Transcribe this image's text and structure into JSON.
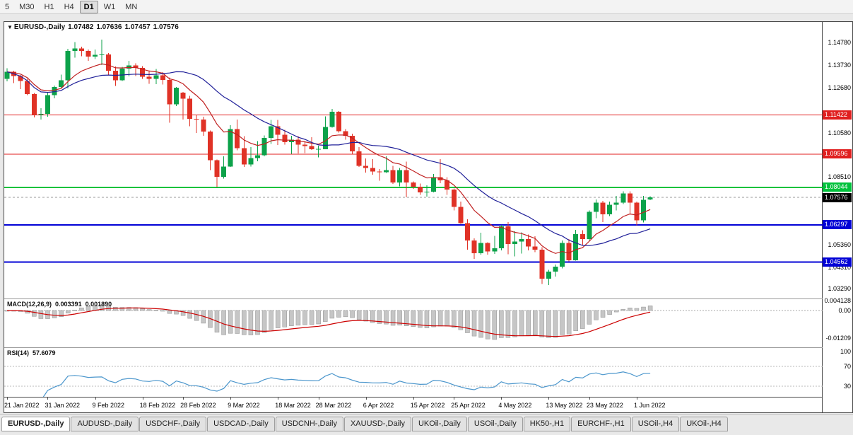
{
  "toolbar": {
    "timeframes": [
      {
        "label": "5",
        "active": false
      },
      {
        "label": "M30",
        "active": false
      },
      {
        "label": "H1",
        "active": false
      },
      {
        "label": "H4",
        "active": false
      },
      {
        "label": "D1",
        "active": true
      },
      {
        "label": "W1",
        "active": false
      },
      {
        "label": "MN",
        "active": false
      }
    ]
  },
  "chart": {
    "header": {
      "dropdown": "▼",
      "title": "EURUSD-,Daily",
      "open": "1.07482",
      "high": "1.07636",
      "low": "1.07457",
      "close": "1.07576"
    },
    "price_axis_ticks": [
      {
        "label": "1.14780",
        "value": 1.1478
      },
      {
        "label": "1.13730",
        "value": 1.1373
      },
      {
        "label": "1.12680",
        "value": 1.1268
      },
      {
        "label": "1.10580",
        "value": 1.1058
      },
      {
        "label": "1.08510",
        "value": 1.0851
      },
      {
        "label": "1.05360",
        "value": 1.0536
      },
      {
        "label": "1.04310",
        "value": 1.0431
      },
      {
        "label": "1.03290",
        "value": 1.0329
      }
    ],
    "levels": [
      {
        "label": "1.11422",
        "value": 1.11422,
        "color": "#e01f1f",
        "width": 1
      },
      {
        "label": "1.09596",
        "value": 1.09596,
        "color": "#e01f1f",
        "width": 1
      },
      {
        "label": "1.08044",
        "value": 1.08044,
        "color": "#00c23c",
        "width": 2
      },
      {
        "label": "1.06297",
        "value": 1.06297,
        "color": "#0202d6",
        "width": 2
      },
      {
        "label": "1.04562",
        "value": 1.04562,
        "color": "#0202d6",
        "width": 2
      }
    ],
    "current_price": {
      "label": "1.07576",
      "value": 1.07576,
      "bg": "#000000"
    }
  },
  "chart_data": {
    "type": "candlestick",
    "title": "EURUSD-,Daily",
    "ylim": [
      1.0286,
      1.1577
    ],
    "style": {
      "up_color": "#0ca24a",
      "down_color": "#e03226"
    },
    "x_axis_labels": [
      {
        "index": 0,
        "label": "21 Jan 2022"
      },
      {
        "index": 6,
        "label": "31 Jan 2022"
      },
      {
        "index": 13,
        "label": "9 Feb 2022"
      },
      {
        "index": 20,
        "label": "18 Feb 2022"
      },
      {
        "index": 26,
        "label": "28 Feb 2022"
      },
      {
        "index": 33,
        "label": "9 Mar 2022"
      },
      {
        "index": 40,
        "label": "18 Mar 2022"
      },
      {
        "index": 46,
        "label": "28 Mar 2022"
      },
      {
        "index": 53,
        "label": "6 Apr 2022"
      },
      {
        "index": 60,
        "label": "15 Apr 2022"
      },
      {
        "index": 66,
        "label": "25 Apr 2022"
      },
      {
        "index": 73,
        "label": "4 May 2022"
      },
      {
        "index": 80,
        "label": "13 May 2022"
      },
      {
        "index": 86,
        "label": "23 May 2022"
      },
      {
        "index": 93,
        "label": "1 Jun 2022"
      }
    ],
    "candles": [
      [
        1.1312,
        1.136,
        1.13,
        1.1344
      ],
      [
        1.1344,
        1.1349,
        1.1291,
        1.1325
      ],
      [
        1.1325,
        1.133,
        1.1264,
        1.1301
      ],
      [
        1.1301,
        1.1311,
        1.1235,
        1.124
      ],
      [
        1.124,
        1.1245,
        1.1131,
        1.1144
      ],
      [
        1.1144,
        1.1174,
        1.1121,
        1.1148
      ],
      [
        1.1148,
        1.1248,
        1.1135,
        1.1235
      ],
      [
        1.1235,
        1.128,
        1.1221,
        1.1273
      ],
      [
        1.1273,
        1.1331,
        1.1267,
        1.1304
      ],
      [
        1.1304,
        1.1452,
        1.1266,
        1.1441
      ],
      [
        1.1441,
        1.1483,
        1.1411,
        1.1454
      ],
      [
        1.1454,
        1.1462,
        1.1417,
        1.1441
      ],
      [
        1.1441,
        1.1449,
        1.1396,
        1.1416
      ],
      [
        1.1416,
        1.1448,
        1.1403,
        1.1423
      ],
      [
        1.1423,
        1.1495,
        1.1375,
        1.1425
      ],
      [
        1.1425,
        1.1432,
        1.133,
        1.135
      ],
      [
        1.135,
        1.1369,
        1.1278,
        1.1305
      ],
      [
        1.1305,
        1.1368,
        1.1301,
        1.1359
      ],
      [
        1.1359,
        1.1395,
        1.1323,
        1.1374
      ],
      [
        1.1374,
        1.1384,
        1.1325,
        1.1363
      ],
      [
        1.1363,
        1.137,
        1.1312,
        1.1321
      ],
      [
        1.1321,
        1.1348,
        1.1288,
        1.1311
      ],
      [
        1.1311,
        1.1358,
        1.1287,
        1.1327
      ],
      [
        1.1327,
        1.1342,
        1.1285,
        1.1307
      ],
      [
        1.1307,
        1.1317,
        1.1106,
        1.1193
      ],
      [
        1.1193,
        1.1274,
        1.1184,
        1.127
      ],
      [
        1.1246,
        1.125,
        1.1121,
        1.1218
      ],
      [
        1.1218,
        1.1232,
        1.109,
        1.1125
      ],
      [
        1.1125,
        1.1145,
        1.1058,
        1.1121
      ],
      [
        1.1121,
        1.1135,
        1.1045,
        1.1065
      ],
      [
        1.1065,
        1.107,
        1.0885,
        1.0932
      ],
      [
        1.0932,
        1.0935,
        1.0806,
        1.0854
      ],
      [
        1.0854,
        1.095,
        1.0845,
        1.0902
      ],
      [
        1.0902,
        1.1095,
        1.09,
        1.1076
      ],
      [
        1.1076,
        1.1121,
        1.0977,
        1.0988
      ],
      [
        1.0988,
        1.1043,
        1.09,
        1.0911
      ],
      [
        1.0911,
        1.0992,
        1.0901,
        1.0941
      ],
      [
        1.0941,
        1.102,
        1.0927,
        1.0955
      ],
      [
        1.0955,
        1.1047,
        1.095,
        1.1035
      ],
      [
        1.1035,
        1.1119,
        1.1008,
        1.109
      ],
      [
        1.109,
        1.112,
        1.1003,
        1.1051
      ],
      [
        1.1051,
        1.1073,
        1.1004,
        1.1015
      ],
      [
        1.1015,
        1.1046,
        1.0961,
        1.1027
      ],
      [
        1.1027,
        1.1044,
        1.0963,
        1.1004
      ],
      [
        1.1004,
        1.1021,
        1.0965,
        1.0997
      ],
      [
        1.0997,
        1.1038,
        1.0979,
        1.0983
      ],
      [
        1.0983,
        1.0999,
        1.0944,
        1.0985
      ],
      [
        1.0983,
        1.1137,
        1.0982,
        1.1087
      ],
      [
        1.1087,
        1.1171,
        1.1083,
        1.1157
      ],
      [
        1.1157,
        1.1161,
        1.1061,
        1.1067
      ],
      [
        1.1067,
        1.1077,
        1.1027,
        1.1046
      ],
      [
        1.1046,
        1.1056,
        1.096,
        1.0972
      ],
      [
        1.0972,
        1.0992,
        1.09,
        1.0905
      ],
      [
        1.0905,
        1.0939,
        1.0874,
        1.0896
      ],
      [
        1.0896,
        1.0937,
        1.0864,
        1.0879
      ],
      [
        1.0879,
        1.089,
        1.0836,
        1.0876
      ],
      [
        1.0876,
        1.095,
        1.0872,
        1.0885
      ],
      [
        1.0885,
        1.0905,
        1.0821,
        1.0827
      ],
      [
        1.0827,
        1.0895,
        1.0809,
        1.0886
      ],
      [
        1.0886,
        1.0925,
        1.0758,
        1.0827
      ],
      [
        1.0827,
        1.0832,
        1.0797,
        1.0808
      ],
      [
        1.0808,
        1.0822,
        1.0769,
        1.0781
      ],
      [
        1.0781,
        1.0815,
        1.0761,
        1.0785
      ],
      [
        1.0785,
        1.0867,
        1.0782,
        1.0853
      ],
      [
        1.0853,
        1.0937,
        1.0824,
        1.0838
      ],
      [
        1.0838,
        1.0853,
        1.077,
        1.0794
      ],
      [
        1.0794,
        1.08,
        1.0697,
        1.0713
      ],
      [
        1.0713,
        1.0738,
        1.0635,
        1.0637
      ],
      [
        1.0637,
        1.0655,
        1.0514,
        1.0557
      ],
      [
        1.0557,
        1.0567,
        1.0471,
        1.0498
      ],
      [
        1.0498,
        1.0593,
        1.049,
        1.0545
      ],
      [
        1.0545,
        1.0549,
        1.0491,
        1.0505
      ],
      [
        1.0505,
        1.0578,
        1.0494,
        1.0521
      ],
      [
        1.0521,
        1.063,
        1.051,
        1.0622
      ],
      [
        1.0622,
        1.0642,
        1.0492,
        1.054
      ],
      [
        1.054,
        1.0599,
        1.0483,
        1.0551
      ],
      [
        1.0551,
        1.0594,
        1.0495,
        1.0563
      ],
      [
        1.0563,
        1.0585,
        1.051,
        1.0528
      ],
      [
        1.0528,
        1.0576,
        1.0503,
        1.0514
      ],
      [
        1.0514,
        1.0525,
        1.0354,
        1.0379
      ],
      [
        1.0379,
        1.0419,
        1.0349,
        1.0411
      ],
      [
        1.0411,
        1.0445,
        1.0388,
        1.0434
      ],
      [
        1.0434,
        1.0557,
        1.0427,
        1.0546
      ],
      [
        1.0546,
        1.0564,
        1.0459,
        1.0464
      ],
      [
        1.0464,
        1.0607,
        1.0462,
        1.0587
      ],
      [
        1.0587,
        1.0604,
        1.0532,
        1.0563
      ],
      [
        1.0563,
        1.0697,
        1.0556,
        1.0691
      ],
      [
        1.0691,
        1.0748,
        1.0661,
        1.0734
      ],
      [
        1.0734,
        1.0742,
        1.0642,
        1.0679
      ],
      [
        1.0679,
        1.0739,
        1.0671,
        1.0724
      ],
      [
        1.0724,
        1.0765,
        1.0697,
        1.0733
      ],
      [
        1.0733,
        1.0786,
        1.0726,
        1.0777
      ],
      [
        1.0777,
        1.0787,
        1.0678,
        1.0734
      ],
      [
        1.0734,
        1.0739,
        1.0627,
        1.0651
      ],
      [
        1.0651,
        1.0764,
        1.0641,
        1.0747
      ],
      [
        1.07482,
        1.07636,
        1.07457,
        1.07576
      ]
    ],
    "overlays": [
      {
        "name": "ma-fast",
        "type": "ema",
        "period": 10,
        "color": "#c02020"
      },
      {
        "name": "ma-slow",
        "type": "sma",
        "period": 20,
        "color": "#202099"
      }
    ],
    "indicators": {
      "macd": {
        "label": "MACD(12,26,9)",
        "value_main": "0.003391",
        "value_signal": "0.001890",
        "fast": 12,
        "slow": 26,
        "signal": 9,
        "hist_color": "#c6c6c6",
        "signal_color": "#cc0000",
        "axis_ticks": [
          {
            "label": "0.004128",
            "value": 0.004128
          },
          {
            "label": "0.00",
            "value": 0
          },
          {
            "label": "-0.01209",
            "value": -0.01209
          }
        ]
      },
      "rsi": {
        "label": "RSI(14)",
        "value": "57.6079",
        "period": 14,
        "color": "#4b96cc",
        "levels": [
          70,
          30
        ],
        "axis_ticks": [
          {
            "label": "100",
            "value": 100
          },
          {
            "label": "70",
            "value": 70
          },
          {
            "label": "30",
            "value": 30
          }
        ]
      }
    }
  },
  "tabs": [
    {
      "label": "EURUSD-,Daily",
      "active": true
    },
    {
      "label": "AUDUSD-,Daily",
      "active": false
    },
    {
      "label": "USDCHF-,Daily",
      "active": false
    },
    {
      "label": "USDCAD-,Daily",
      "active": false
    },
    {
      "label": "USDCNH-,Daily",
      "active": false
    },
    {
      "label": "XAUUSD-,Daily",
      "active": false
    },
    {
      "label": "UKOil-,Daily",
      "active": false
    },
    {
      "label": "USOil-,Daily",
      "active": false
    },
    {
      "label": "HK50-,H1",
      "active": false
    },
    {
      "label": "EURCHF-,H1",
      "active": false
    },
    {
      "label": "USOil-,H4",
      "active": false
    },
    {
      "label": "UKOil-,H4",
      "active": false
    }
  ]
}
